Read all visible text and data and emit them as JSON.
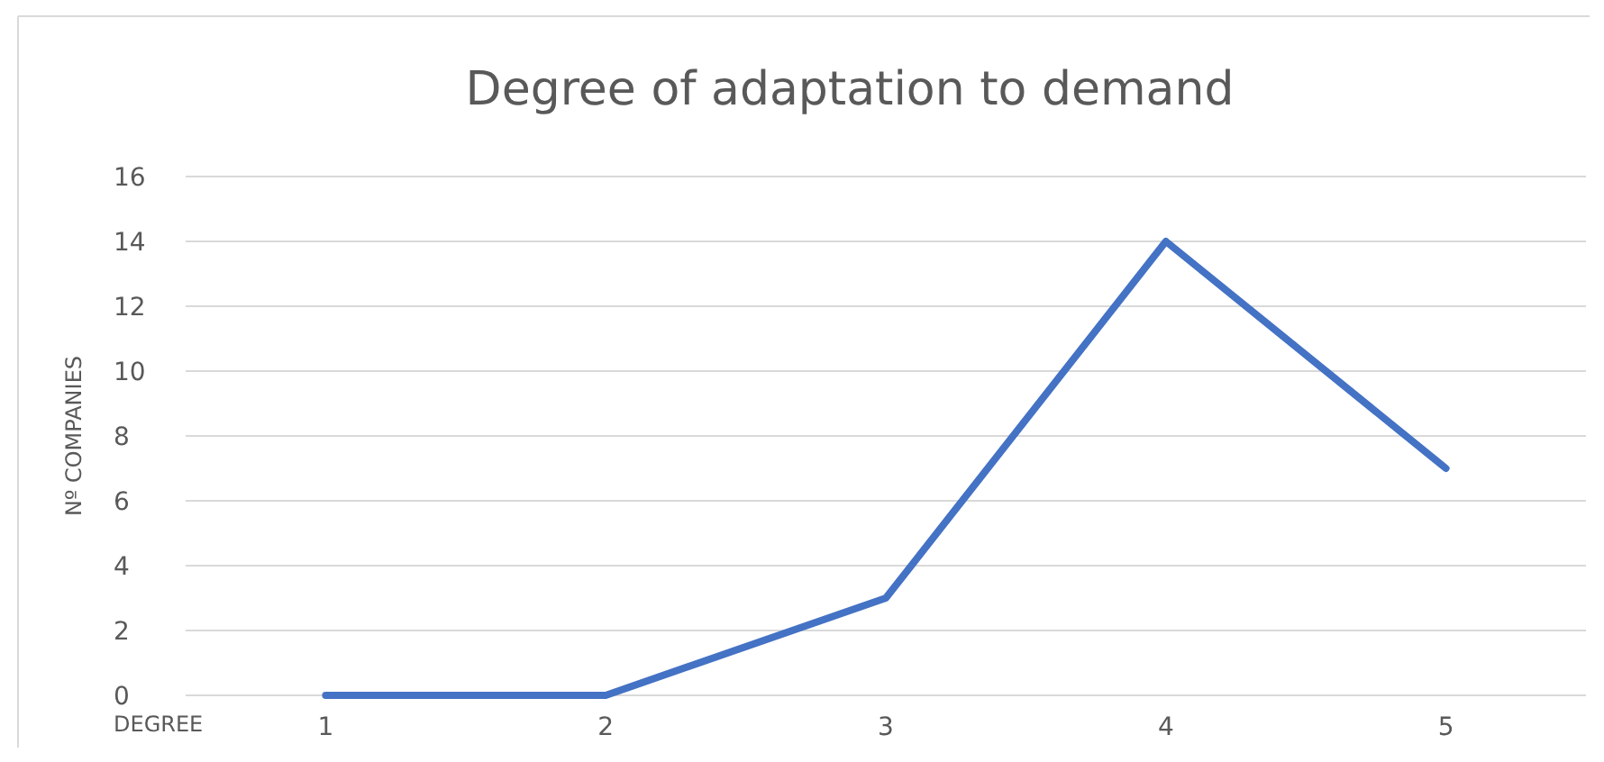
{
  "chart_data": {
    "type": "line",
    "title": "Degree of adaptation to demand",
    "xlabel": "DEGREE",
    "ylabel": "Nº COMPANIES",
    "categories": [
      "1",
      "2",
      "3",
      "4",
      "5"
    ],
    "series": [
      {
        "color": "#4472c4",
        "values": [
          0,
          0,
          3,
          14,
          7
        ]
      }
    ],
    "ylim": [
      0,
      16
    ],
    "yticks": [
      0,
      2,
      4,
      6,
      8,
      10,
      12,
      14,
      16
    ],
    "grid": "y",
    "marker": "none",
    "line_style": "solid"
  }
}
